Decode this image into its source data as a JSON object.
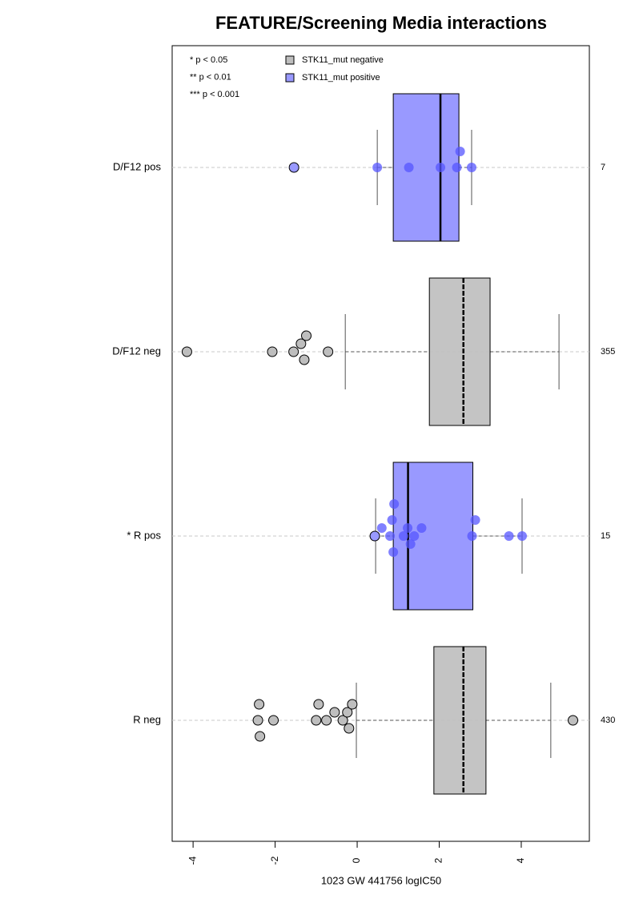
{
  "chart_data": {
    "type": "boxplot",
    "title": "FEATURE/Screening Media interactions",
    "x_label": "1023 GW 441756 logIC50",
    "xlim": [
      -4.51,
      5.66
    ],
    "xticks": [
      -4,
      -2,
      0,
      2,
      4
    ],
    "notes": [
      "* p < 0.05",
      "** p < 0.01",
      "*** p < 0.001"
    ],
    "legend": [
      {
        "name": "STK11_mut negative",
        "color": "#bebebe"
      },
      {
        "name": "STK11_mut positive",
        "color": "#9999ff"
      }
    ],
    "groups": [
      {
        "label": "D/F12 pos",
        "n": 7,
        "series": 1,
        "whisker_low": 0.49,
        "q1": 0.88,
        "median": 2.03,
        "q3": 2.48,
        "whisker_high": 2.79,
        "points": [
          -1.54,
          0.49,
          1.26,
          2.03,
          2.43,
          2.51,
          2.79
        ]
      },
      {
        "label": "D/F12 neg",
        "n": 355,
        "series": 0,
        "whisker_low": -0.29,
        "q1": 1.76,
        "median": 2.59,
        "q3": 3.24,
        "whisker_high": 4.92,
        "points": [
          -4.15,
          -2.07,
          -1.55,
          -1.37,
          -1.29,
          -1.24,
          -0.71
        ]
      },
      {
        "label": "* R pos",
        "n": 15,
        "series": 1,
        "whisker_low": 0.45,
        "q1": 0.88,
        "median": 1.24,
        "q3": 2.82,
        "whisker_high": 4.02,
        "points": [
          0.43,
          0.6,
          0.8,
          0.85,
          0.88,
          0.9,
          1.13,
          1.23,
          1.3,
          1.39,
          1.57,
          2.8,
          2.88,
          3.7,
          4.02
        ]
      },
      {
        "label": "R neg",
        "n": 430,
        "series": 0,
        "whisker_low": -0.02,
        "q1": 1.87,
        "median": 2.59,
        "q3": 3.14,
        "whisker_high": 4.72,
        "points": [
          -2.42,
          -2.39,
          -2.37,
          -2.04,
          -1.0,
          -0.94,
          -0.75,
          -0.55,
          -0.35,
          -0.24,
          -0.2,
          -0.12,
          5.26
        ]
      }
    ]
  }
}
